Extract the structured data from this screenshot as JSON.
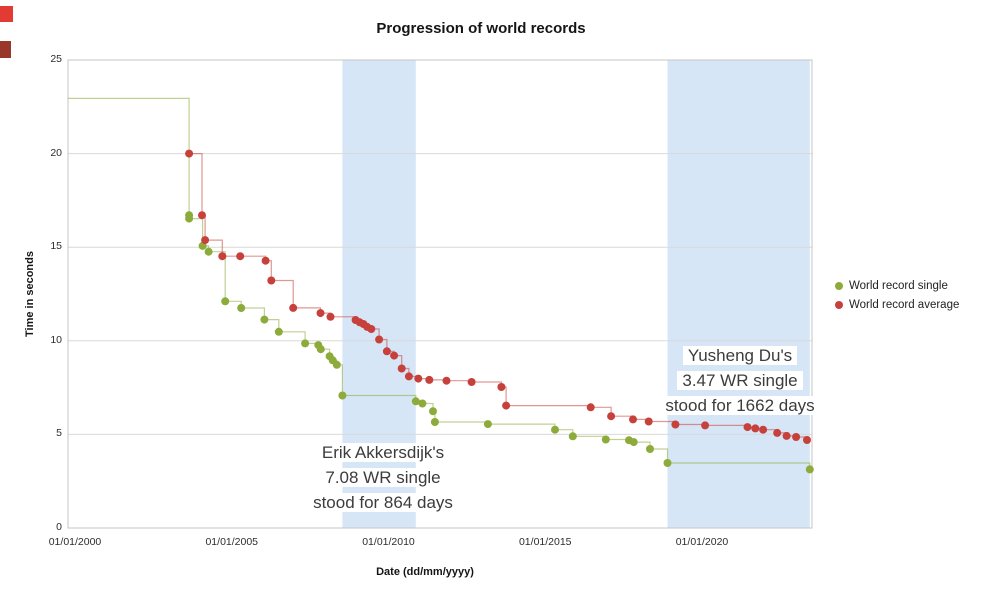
{
  "title": "Progression of world records",
  "axes": {
    "y_title": "Time in seconds",
    "x_title": "Date (dd/mm/yyyy)",
    "y_ticks": [
      0,
      5,
      10,
      15,
      20,
      25
    ],
    "x_ticks": [
      "01/01/2000",
      "01/01/2005",
      "01/01/2010",
      "01/01/2015",
      "01/01/2020"
    ]
  },
  "legend": [
    {
      "label": "World record single",
      "color": "#8cab3a"
    },
    {
      "label": "World record average",
      "color": "#c7413c"
    }
  ],
  "annotations": [
    {
      "lines": [
        "Erik Akkersdijk's",
        "7.08 WR single",
        "stood for 864 days"
      ]
    },
    {
      "lines": [
        "Yusheng Du's",
        "3.47 WR single",
        "stood for 1662 days"
      ]
    }
  ],
  "chart_data": {
    "type": "line",
    "subtype": "step-after-with-markers",
    "title": "Progression of world records",
    "xlabel": "Date (dd/mm/yyyy)",
    "ylabel": "Time in seconds",
    "x_tick_labels": [
      "01/01/2000",
      "01/01/2005",
      "01/01/2010",
      "01/01/2015",
      "01/01/2020"
    ],
    "x_tick_years": [
      2000,
      2005,
      2010,
      2015,
      2020
    ],
    "xlim_years": [
      1999.8,
      2023.5
    ],
    "ylim": [
      0,
      25
    ],
    "grid": "horizontal",
    "legend_position": "right-outside",
    "highlight_bands_years": [
      {
        "start_year": 2008.53,
        "end_year": 2010.87,
        "color": "#d6e6f7",
        "caption": "Erik Akkersdijk's 7.08 WR single stood for 864 days"
      },
      {
        "start_year": 2018.9,
        "end_year": 2023.44,
        "color": "#d6e6f7",
        "caption": "Yusheng Du's 3.47 WR single stood for 1662 days"
      }
    ],
    "series": [
      {
        "name": "World record single",
        "color": "#8cab3a",
        "lead_in_value": 22.95,
        "points": [
          [
            2003.64,
            16.71
          ],
          [
            2003.64,
            16.53
          ],
          [
            2004.07,
            15.07
          ],
          [
            2004.26,
            14.76
          ],
          [
            2004.79,
            12.11
          ],
          [
            2005.3,
            11.75
          ],
          [
            2006.04,
            11.13
          ],
          [
            2006.5,
            10.48
          ],
          [
            2007.34,
            9.86
          ],
          [
            2007.76,
            9.77
          ],
          [
            2007.84,
            9.55
          ],
          [
            2008.12,
            9.18
          ],
          [
            2008.22,
            8.96
          ],
          [
            2008.35,
            8.72
          ],
          [
            2008.53,
            7.08
          ],
          [
            2010.87,
            6.77
          ],
          [
            2011.08,
            6.65
          ],
          [
            2011.42,
            6.24
          ],
          [
            2011.48,
            5.66
          ],
          [
            2013.17,
            5.55
          ],
          [
            2015.31,
            5.25
          ],
          [
            2015.88,
            4.9
          ],
          [
            2016.93,
            4.73
          ],
          [
            2017.67,
            4.69
          ],
          [
            2017.82,
            4.59
          ],
          [
            2018.34,
            4.22
          ],
          [
            2018.9,
            3.47
          ],
          [
            2023.44,
            3.13
          ]
        ]
      },
      {
        "name": "World record average",
        "color": "#c7413c",
        "points": [
          [
            2003.64,
            20.0
          ],
          [
            2004.05,
            16.71
          ],
          [
            2004.15,
            15.38
          ],
          [
            2004.7,
            14.52
          ],
          [
            2005.27,
            14.52
          ],
          [
            2006.08,
            14.28
          ],
          [
            2006.26,
            13.22
          ],
          [
            2006.96,
            11.76
          ],
          [
            2007.83,
            11.48
          ],
          [
            2008.15,
            11.28
          ],
          [
            2008.95,
            11.11
          ],
          [
            2009.08,
            10.99
          ],
          [
            2009.2,
            10.9
          ],
          [
            2009.32,
            10.74
          ],
          [
            2009.45,
            10.63
          ],
          [
            2009.7,
            10.07
          ],
          [
            2009.95,
            9.44
          ],
          [
            2010.18,
            9.21
          ],
          [
            2010.42,
            8.52
          ],
          [
            2010.65,
            8.1
          ],
          [
            2010.95,
            7.98
          ],
          [
            2011.3,
            7.91
          ],
          [
            2011.85,
            7.87
          ],
          [
            2012.65,
            7.8
          ],
          [
            2013.6,
            7.53
          ],
          [
            2013.75,
            6.54
          ],
          [
            2016.45,
            6.45
          ],
          [
            2017.1,
            5.97
          ],
          [
            2017.8,
            5.8
          ],
          [
            2018.3,
            5.69
          ],
          [
            2019.15,
            5.53
          ],
          [
            2020.1,
            5.48
          ],
          [
            2021.45,
            5.39
          ],
          [
            2021.7,
            5.32
          ],
          [
            2021.95,
            5.25
          ],
          [
            2022.4,
            5.08
          ],
          [
            2022.7,
            4.92
          ],
          [
            2023.0,
            4.86
          ],
          [
            2023.35,
            4.7
          ]
        ]
      }
    ]
  }
}
